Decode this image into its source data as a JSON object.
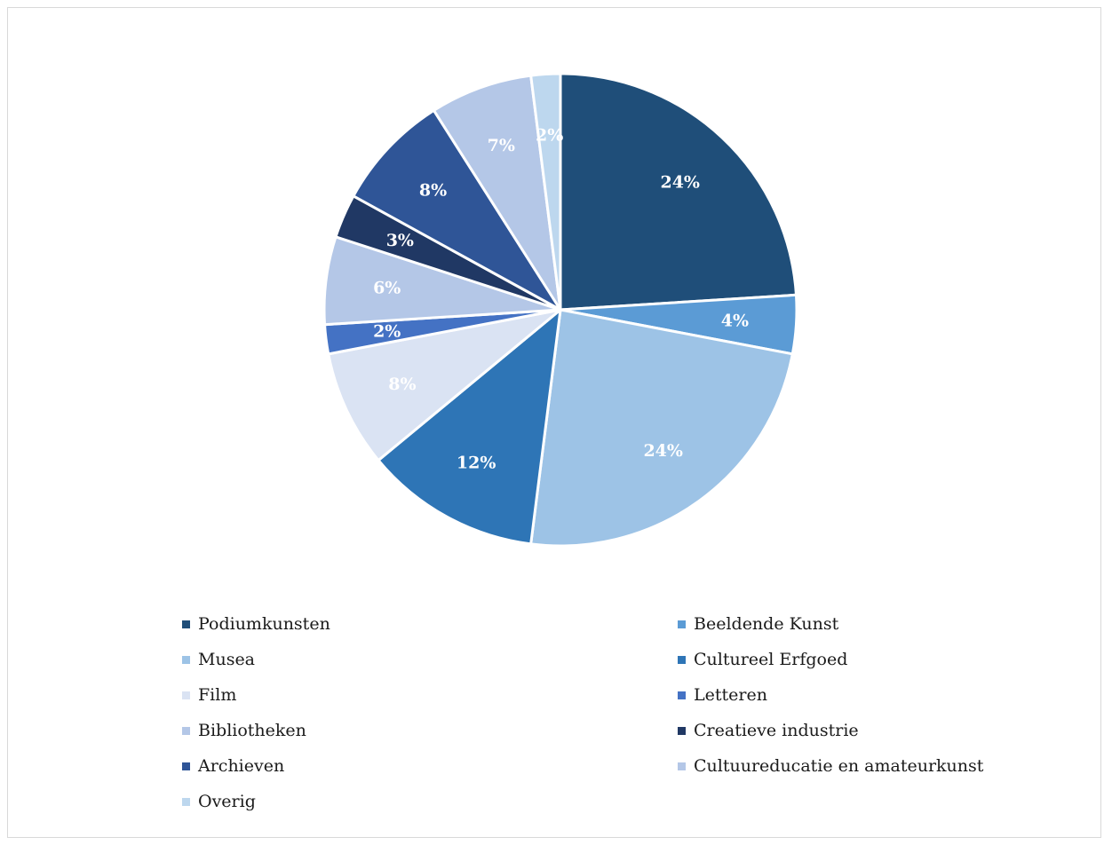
{
  "chart_data": {
    "type": "pie",
    "title": "",
    "label_color": "#ffffff",
    "slice_border_color": "#ffffff",
    "legend_position": "bottom",
    "slices": [
      {
        "name": "Podiumkunsten",
        "value": 24,
        "label": "24%",
        "color": "#1f4e79"
      },
      {
        "name": "Beeldende Kunst",
        "value": 4,
        "label": "4%",
        "color": "#5b9bd5"
      },
      {
        "name": "Musea",
        "value": 24,
        "label": "24%",
        "color": "#9dc3e6"
      },
      {
        "name": "Cultureel Erfgoed",
        "value": 12,
        "label": "12%",
        "color": "#2e75b6"
      },
      {
        "name": "Film",
        "value": 8,
        "label": "8%",
        "color": "#dae3f3"
      },
      {
        "name": "Letteren",
        "value": 2,
        "label": "2%",
        "color": "#4472c4"
      },
      {
        "name": "Bibliotheken",
        "value": 6,
        "label": "6%",
        "color": "#b4c7e7"
      },
      {
        "name": "Creatieve industrie",
        "value": 3,
        "label": "3%",
        "color": "#203864"
      },
      {
        "name": "Archieven",
        "value": 8,
        "label": "8%",
        "color": "#2f5597"
      },
      {
        "name": "Cultuureducatie en amateurkunst",
        "value": 7,
        "label": "7%",
        "color": "#b4c7e7"
      },
      {
        "name": "Overig",
        "value": 2,
        "label": "2%",
        "color": "#bdd7ee"
      }
    ]
  }
}
